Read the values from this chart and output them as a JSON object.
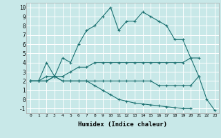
{
  "xlabel": "Humidex (Indice chaleur)",
  "bg_color": "#c8e8e8",
  "grid_color": "#ffffff",
  "line_color": "#1a7070",
  "xlim": [
    -0.5,
    23.5
  ],
  "ylim": [
    -1.5,
    10.5
  ],
  "xticks": [
    0,
    1,
    2,
    3,
    4,
    5,
    6,
    7,
    8,
    9,
    10,
    11,
    12,
    13,
    14,
    15,
    16,
    17,
    18,
    19,
    20,
    21,
    22,
    23
  ],
  "yticks": [
    -1,
    0,
    1,
    2,
    3,
    4,
    5,
    6,
    7,
    8,
    9,
    10
  ],
  "series": [
    {
      "x": [
        0,
        1,
        2,
        3,
        4,
        5,
        6,
        7,
        8,
        9,
        10,
        11,
        12,
        13,
        14,
        15,
        16,
        17,
        18,
        19,
        20,
        21
      ],
      "y": [
        2.0,
        2.0,
        4.0,
        2.5,
        4.5,
        4.0,
        6.0,
        7.5,
        8.0,
        9.0,
        10.0,
        7.5,
        8.5,
        8.5,
        9.5,
        9.0,
        8.5,
        8.0,
        6.5,
        6.5,
        4.5,
        2.5
      ]
    },
    {
      "x": [
        0,
        1,
        2,
        3,
        4,
        5,
        6,
        7,
        8,
        9,
        10,
        11,
        12,
        13,
        14,
        15,
        16,
        17,
        18,
        19,
        20,
        21
      ],
      "y": [
        2.0,
        2.0,
        2.5,
        2.5,
        2.5,
        3.0,
        3.5,
        3.5,
        4.0,
        4.0,
        4.0,
        4.0,
        4.0,
        4.0,
        4.0,
        4.0,
        4.0,
        4.0,
        4.0,
        4.0,
        4.5,
        4.5
      ]
    },
    {
      "x": [
        0,
        1,
        2,
        3,
        4,
        5,
        6,
        7,
        8,
        9,
        10,
        11,
        12,
        13,
        14,
        15,
        16,
        17,
        18,
        19,
        20,
        21,
        22,
        23
      ],
      "y": [
        2.0,
        2.0,
        2.0,
        2.5,
        2.0,
        2.0,
        2.0,
        2.0,
        2.0,
        2.0,
        2.0,
        2.0,
        2.0,
        2.0,
        2.0,
        2.0,
        1.5,
        1.5,
        1.5,
        1.5,
        1.5,
        2.5,
        0.0,
        -1.2
      ]
    },
    {
      "x": [
        0,
        1,
        2,
        3,
        4,
        5,
        6,
        7,
        8,
        9,
        10,
        11,
        12,
        13,
        14,
        15,
        16,
        17,
        18,
        19,
        20
      ],
      "y": [
        2.0,
        2.0,
        2.0,
        2.5,
        2.0,
        2.0,
        2.0,
        2.0,
        1.5,
        1.0,
        0.5,
        0.0,
        -0.2,
        -0.4,
        -0.5,
        -0.6,
        -0.7,
        -0.8,
        -0.9,
        -1.0,
        -1.0
      ]
    }
  ]
}
